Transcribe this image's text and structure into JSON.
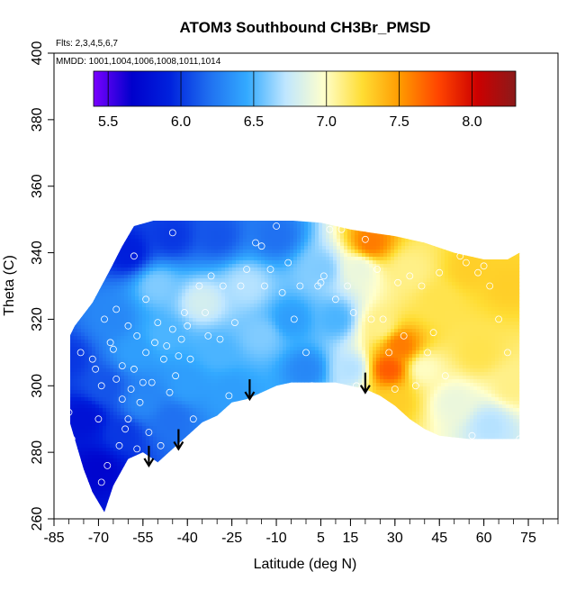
{
  "chart_data": {
    "type": "heatmap",
    "title": "ATOM3 Southbound CH3Br_PMSD",
    "subtitle_flights": "Flts: 2,3,4,5,6,7",
    "subtitle_dates": "MMDD: 1001,1004,1006,1008,1011,1014",
    "xlabel": "Latitude (deg N)",
    "ylabel": "Theta (C)",
    "xlim": [
      -85,
      85
    ],
    "ylim": [
      260,
      400
    ],
    "x_ticks": [
      "-85",
      "-70",
      "-55",
      "-40",
      "-25",
      "-10",
      "5",
      "15",
      "30",
      "45",
      "60",
      "75"
    ],
    "x_tick_values": [
      -85,
      -70,
      -55,
      -40,
      -25,
      -10,
      5,
      15,
      30,
      45,
      60,
      75
    ],
    "y_ticks": [
      "260",
      "280",
      "300",
      "320",
      "340",
      "360",
      "380",
      "400"
    ],
    "y_tick_values": [
      260,
      280,
      300,
      320,
      340,
      360,
      380,
      400
    ],
    "colorbar": {
      "range": [
        5.4,
        8.3
      ],
      "ticks": [
        "5.5",
        "6.0",
        "6.5",
        "7.0",
        "7.5",
        "8.0"
      ],
      "tick_values": [
        5.5,
        6.0,
        6.5,
        7.0,
        7.5,
        8.0
      ],
      "colors": [
        "#7a00ff",
        "#0000cc",
        "#0022dd",
        "#1f6ff0",
        "#33aaff",
        "#bfe6ff",
        "#ffffcc",
        "#ffdd33",
        "#ff9900",
        "#ff4400",
        "#cc0000",
        "#8b1a1a"
      ]
    },
    "arrows": [
      {
        "lat": -53,
        "theta": 276
      },
      {
        "lat": -43,
        "theta": 281
      },
      {
        "lat": -19,
        "theta": 296
      },
      {
        "lat": 20,
        "theta": 298
      }
    ],
    "field": {
      "lower_boundary": [
        [
          -83,
          293
        ],
        [
          -80,
          290
        ],
        [
          -75,
          275
        ],
        [
          -72,
          268
        ],
        [
          -68,
          262
        ],
        [
          -65,
          270
        ],
        [
          -60,
          278
        ],
        [
          -55,
          280
        ],
        [
          -50,
          277
        ],
        [
          -45,
          281
        ],
        [
          -40,
          285
        ],
        [
          -35,
          289
        ],
        [
          -30,
          291
        ],
        [
          -25,
          295
        ],
        [
          -20,
          296
        ],
        [
          -15,
          298
        ],
        [
          -10,
          300
        ],
        [
          -5,
          301
        ],
        [
          5,
          301
        ],
        [
          10,
          301
        ],
        [
          15,
          300
        ],
        [
          20,
          299
        ],
        [
          25,
          297
        ],
        [
          30,
          294
        ],
        [
          35,
          290
        ],
        [
          40,
          287
        ],
        [
          45,
          285
        ],
        [
          55,
          284
        ],
        [
          65,
          284
        ],
        [
          72,
          284
        ]
      ],
      "upper_boundary": [
        [
          72,
          340
        ],
        [
          68,
          338
        ],
        [
          60,
          338
        ],
        [
          50,
          340
        ],
        [
          40,
          343
        ],
        [
          30,
          345
        ],
        [
          22,
          346
        ],
        [
          15,
          347
        ],
        [
          5,
          349
        ],
        [
          -10,
          350
        ],
        [
          -30,
          350
        ],
        [
          -50,
          350
        ],
        [
          -58,
          348
        ],
        [
          -62,
          342
        ],
        [
          -66,
          335
        ],
        [
          -72,
          325
        ],
        [
          -78,
          318
        ],
        [
          -83,
          309
        ]
      ],
      "points": [
        {
          "lat": -80,
          "theta": 308,
          "value": 6.0
        },
        {
          "lat": -75,
          "theta": 290,
          "value": 5.8
        },
        {
          "lat": -70,
          "theta": 275,
          "value": 5.7
        },
        {
          "lat": -68,
          "theta": 300,
          "value": 6.1
        },
        {
          "lat": -65,
          "theta": 320,
          "value": 6.3
        },
        {
          "lat": -62,
          "theta": 285,
          "value": 6.0
        },
        {
          "lat": -60,
          "theta": 340,
          "value": 5.9
        },
        {
          "lat": -58,
          "theta": 310,
          "value": 6.4
        },
        {
          "lat": -55,
          "theta": 295,
          "value": 6.3
        },
        {
          "lat": -50,
          "theta": 330,
          "value": 6.6
        },
        {
          "lat": -48,
          "theta": 315,
          "value": 6.5
        },
        {
          "lat": -45,
          "theta": 290,
          "value": 6.2
        },
        {
          "lat": -45,
          "theta": 345,
          "value": 6.0
        },
        {
          "lat": -40,
          "theta": 300,
          "value": 6.4
        },
        {
          "lat": -35,
          "theta": 325,
          "value": 6.8
        },
        {
          "lat": -30,
          "theta": 310,
          "value": 6.5
        },
        {
          "lat": -30,
          "theta": 345,
          "value": 6.1
        },
        {
          "lat": -25,
          "theta": 298,
          "value": 6.4
        },
        {
          "lat": -20,
          "theta": 330,
          "value": 6.7
        },
        {
          "lat": -15,
          "theta": 315,
          "value": 6.6
        },
        {
          "lat": -10,
          "theta": 345,
          "value": 6.2
        },
        {
          "lat": -5,
          "theta": 320,
          "value": 6.4
        },
        {
          "lat": 0,
          "theta": 305,
          "value": 6.3
        },
        {
          "lat": 5,
          "theta": 335,
          "value": 6.6
        },
        {
          "lat": 10,
          "theta": 320,
          "value": 6.5
        },
        {
          "lat": 15,
          "theta": 305,
          "value": 6.7
        },
        {
          "lat": 18,
          "theta": 335,
          "value": 6.9
        },
        {
          "lat": 22,
          "theta": 343,
          "value": 7.6
        },
        {
          "lat": 25,
          "theta": 318,
          "value": 7.1
        },
        {
          "lat": 28,
          "theta": 305,
          "value": 7.7
        },
        {
          "lat": 30,
          "theta": 295,
          "value": 7.3
        },
        {
          "lat": 32,
          "theta": 312,
          "value": 7.6
        },
        {
          "lat": 35,
          "theta": 335,
          "value": 7.1
        },
        {
          "lat": 40,
          "theta": 305,
          "value": 7.0
        },
        {
          "lat": 45,
          "theta": 325,
          "value": 7.2
        },
        {
          "lat": 50,
          "theta": 295,
          "value": 6.9
        },
        {
          "lat": 55,
          "theta": 335,
          "value": 7.3
        },
        {
          "lat": 58,
          "theta": 310,
          "value": 7.2
        },
        {
          "lat": 62,
          "theta": 288,
          "value": 6.7
        },
        {
          "lat": 68,
          "theta": 330,
          "value": 7.3
        },
        {
          "lat": 70,
          "theta": 300,
          "value": 7.1
        }
      ]
    },
    "observations": [
      [
        -83,
        293
      ],
      [
        -82,
        309
      ],
      [
        -80,
        292
      ],
      [
        -79,
        284
      ],
      [
        -76,
        310
      ],
      [
        -72,
        308
      ],
      [
        -71,
        305
      ],
      [
        -70,
        290
      ],
      [
        -69,
        271
      ],
      [
        -69,
        300
      ],
      [
        -68,
        320
      ],
      [
        -67,
        276
      ],
      [
        -66,
        313
      ],
      [
        -65,
        311
      ],
      [
        -64,
        302
      ],
      [
        -64,
        323
      ],
      [
        -63,
        282
      ],
      [
        -62,
        296
      ],
      [
        -62,
        306
      ],
      [
        -61,
        287
      ],
      [
        -60,
        318
      ],
      [
        -60,
        290
      ],
      [
        -59,
        299
      ],
      [
        -58,
        305
      ],
      [
        -58,
        339
      ],
      [
        -57,
        315
      ],
      [
        -57,
        281
      ],
      [
        -56,
        295
      ],
      [
        -55,
        301
      ],
      [
        -54,
        326
      ],
      [
        -54,
        310
      ],
      [
        -53,
        286
      ],
      [
        -52,
        301
      ],
      [
        -51,
        313
      ],
      [
        -50,
        319
      ],
      [
        -49,
        282
      ],
      [
        -48,
        308
      ],
      [
        -47,
        312
      ],
      [
        -46,
        298
      ],
      [
        -45,
        317
      ],
      [
        -45,
        346
      ],
      [
        -44,
        303
      ],
      [
        -43,
        309
      ],
      [
        -42,
        314
      ],
      [
        -41,
        322
      ],
      [
        -40,
        318
      ],
      [
        -39,
        308
      ],
      [
        -38,
        290
      ],
      [
        -36,
        330
      ],
      [
        -34,
        322
      ],
      [
        -33,
        315
      ],
      [
        -32,
        333
      ],
      [
        -29,
        314
      ],
      [
        -28,
        330
      ],
      [
        -26,
        297
      ],
      [
        -24,
        319
      ],
      [
        -22,
        330
      ],
      [
        -20,
        335
      ],
      [
        -17,
        343
      ],
      [
        -15,
        342
      ],
      [
        -14,
        330
      ],
      [
        -12,
        335
      ],
      [
        -10,
        348
      ],
      [
        -8,
        328
      ],
      [
        -6,
        337
      ],
      [
        -4,
        320
      ],
      [
        -2,
        330
      ],
      [
        0,
        310
      ],
      [
        2,
        300
      ],
      [
        4,
        330
      ],
      [
        5,
        331
      ],
      [
        6,
        333
      ],
      [
        8,
        347
      ],
      [
        10,
        326
      ],
      [
        12,
        347
      ],
      [
        14,
        330
      ],
      [
        16,
        322
      ],
      [
        17,
        300
      ],
      [
        19,
        299
      ],
      [
        20,
        344
      ],
      [
        22,
        320
      ],
      [
        24,
        335
      ],
      [
        26,
        320
      ],
      [
        28,
        310
      ],
      [
        30,
        299
      ],
      [
        31,
        331
      ],
      [
        33,
        315
      ],
      [
        35,
        333
      ],
      [
        37,
        300
      ],
      [
        39,
        330
      ],
      [
        41,
        310
      ],
      [
        43,
        316
      ],
      [
        45,
        334
      ],
      [
        47,
        303
      ],
      [
        50,
        283
      ],
      [
        52,
        339
      ],
      [
        54,
        337
      ],
      [
        56,
        285
      ],
      [
        58,
        334
      ],
      [
        60,
        336
      ],
      [
        62,
        330
      ],
      [
        65,
        320
      ],
      [
        68,
        310
      ],
      [
        72,
        284
      ]
    ]
  }
}
